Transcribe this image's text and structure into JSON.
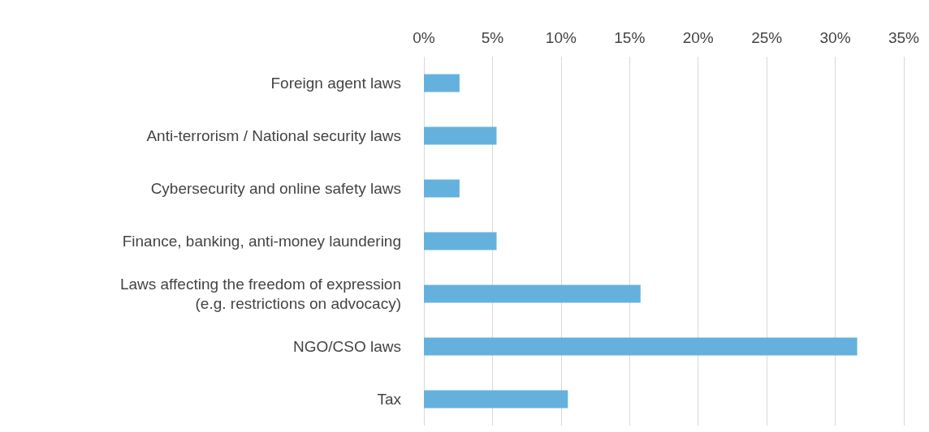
{
  "chart_data": {
    "type": "bar",
    "orientation": "horizontal",
    "categories": [
      "Foreign agent laws",
      "Anti-terrorism / National security laws",
      "Cybersecurity and online safety laws",
      "Finance, banking, anti-money laundering",
      "Laws affecting the freedom of expression\n(e.g. restrictions on advocacy)",
      "NGO/CSO laws",
      "Tax"
    ],
    "values": [
      2.6,
      5.3,
      2.6,
      5.3,
      15.8,
      31.6,
      10.5
    ],
    "color": "#65b1dd",
    "xlim": [
      0,
      35
    ],
    "xticks": [
      {
        "value": 0,
        "label": "0%"
      },
      {
        "value": 5,
        "label": "5%"
      },
      {
        "value": 10,
        "label": "10%"
      },
      {
        "value": 15,
        "label": "15%"
      },
      {
        "value": 20,
        "label": "20%"
      },
      {
        "value": 25,
        "label": "25%"
      },
      {
        "value": 30,
        "label": "30%"
      },
      {
        "value": 35,
        "label": "35%"
      }
    ],
    "grid": true
  }
}
